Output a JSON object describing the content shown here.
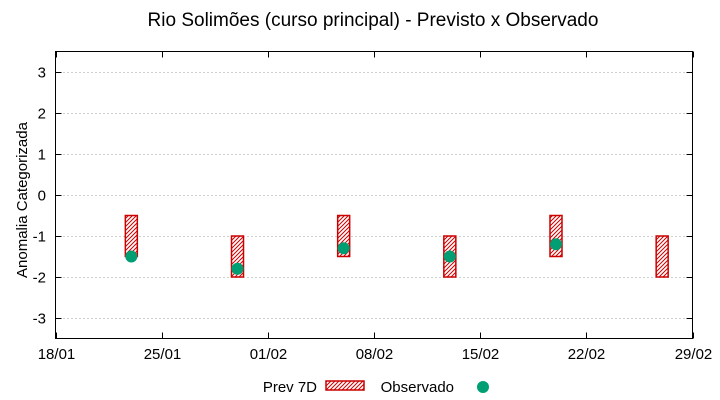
{
  "chart_data": {
    "type": "scatter",
    "title": "Rio Solimões (curso principal) - Previsto x Observado",
    "xlabel": "",
    "ylabel": "Anomalia Categorizada",
    "ylim": [
      -3.5,
      3.5
    ],
    "yticks": [
      -3,
      -2,
      -1,
      0,
      1,
      2,
      3
    ],
    "ytick_labels": [
      "-3",
      "-2",
      "-1",
      "0",
      "1",
      "2",
      "3"
    ],
    "xlim": [
      0,
      42
    ],
    "xticks": [
      0,
      7,
      14,
      21,
      28,
      35,
      42
    ],
    "xtick_labels": [
      "18/01",
      "25/01",
      "01/02",
      "08/02",
      "15/02",
      "22/02",
      "29/02"
    ],
    "grid": true,
    "legend_position": "bottom",
    "series": [
      {
        "name": "Prev 7D",
        "kind": "range-box",
        "color": "#cc0000",
        "points": [
          {
            "x": 5,
            "low": -1.5,
            "high": -0.5
          },
          {
            "x": 12,
            "low": -2.0,
            "high": -1.0
          },
          {
            "x": 19,
            "low": -1.5,
            "high": -0.5
          },
          {
            "x": 26,
            "low": -2.0,
            "high": -1.0
          },
          {
            "x": 33,
            "low": -1.5,
            "high": -0.5
          },
          {
            "x": 40,
            "low": -2.0,
            "high": -1.0
          }
        ]
      },
      {
        "name": "Observado",
        "kind": "point",
        "color": "#009e73",
        "points": [
          {
            "x": 5,
            "y": -1.5
          },
          {
            "x": 12,
            "y": -1.8
          },
          {
            "x": 19,
            "y": -1.3
          },
          {
            "x": 26,
            "y": -1.5
          },
          {
            "x": 33,
            "y": -1.2
          }
        ]
      }
    ]
  }
}
